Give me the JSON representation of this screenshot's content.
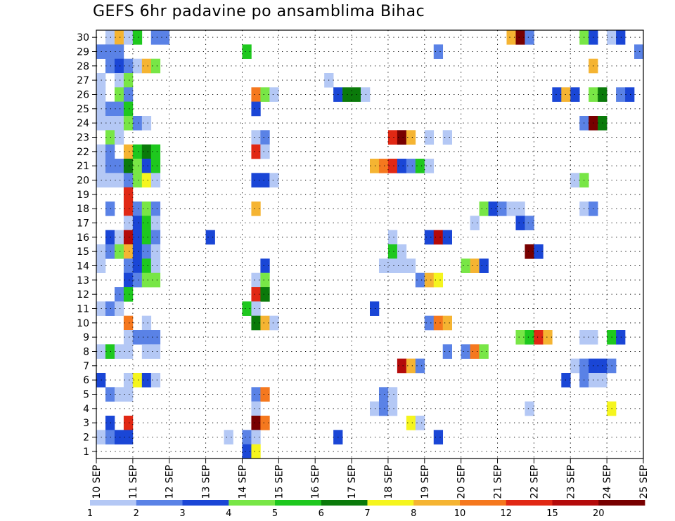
{
  "chart_data": {
    "type": "heatmap",
    "title": "GEFS 6hr padavine po ansamblima Bihac",
    "xlabel": "",
    "ylabel": "",
    "x_ticks": [
      "10 SEP",
      "11 SEP",
      "12 SEP",
      "13 SEP",
      "14 SEP",
      "15 SEP",
      "16 SEP",
      "17 SEP",
      "18 SEP",
      "19 SEP",
      "20 SEP",
      "21 SEP",
      "22 SEP",
      "23 SEP",
      "24 SEP",
      "25 SEP"
    ],
    "x_range_days": [
      10,
      25
    ],
    "y_range": [
      0,
      30
    ],
    "y_ticks": [
      1,
      2,
      3,
      4,
      5,
      6,
      7,
      8,
      9,
      10,
      11,
      12,
      13,
      14,
      15,
      16,
      17,
      18,
      19,
      20,
      21,
      22,
      23,
      24,
      25,
      26,
      27,
      28,
      29,
      30
    ],
    "grid": true,
    "time_step_hours": 6,
    "legend": {
      "placement": "bottom",
      "thresholds": [
        1,
        2,
        3,
        4,
        5,
        6,
        7,
        8,
        10,
        12,
        15,
        20
      ],
      "colors": [
        "#b4c8f5",
        "#5a82e6",
        "#1a46d6",
        "#78e646",
        "#1ec81e",
        "#0a7a0a",
        "#f5f51e",
        "#f5b432",
        "#f5781e",
        "#e12814",
        "#b40a0a",
        "#780000"
      ]
    },
    "cell_colors_by_class": {
      "1": "#b4c8f5",
      "2": "#5a82e6",
      "3": "#1a46d6",
      "4": "#78e646",
      "5": "#1ec81e",
      "6": "#0a7a0a",
      "7": "#f5f51e",
      "8": "#f5b432",
      "9": "#f5781e",
      "10": "#e12814",
      "11": "#b40a0a",
      "12": "#780000"
    },
    "cells": [
      {
        "m": 30,
        "s": 1,
        "c": 1
      },
      {
        "m": 30,
        "s": 2,
        "c": 8
      },
      {
        "m": 30,
        "s": 3,
        "c": 1
      },
      {
        "m": 30,
        "s": 4,
        "c": 5
      },
      {
        "m": 30,
        "s": 6,
        "c": 2
      },
      {
        "m": 30,
        "s": 7,
        "c": 2
      },
      {
        "m": 30,
        "s": 45,
        "c": 8
      },
      {
        "m": 30,
        "s": 46,
        "c": 12
      },
      {
        "m": 30,
        "s": 47,
        "c": 2
      },
      {
        "m": 30,
        "s": 53,
        "c": 4
      },
      {
        "m": 30,
        "s": 54,
        "c": 3
      },
      {
        "m": 30,
        "s": 56,
        "c": 1
      },
      {
        "m": 30,
        "s": 57,
        "c": 3
      },
      {
        "m": 29,
        "s": 0,
        "c": 2
      },
      {
        "m": 29,
        "s": 1,
        "c": 2
      },
      {
        "m": 29,
        "s": 2,
        "c": 2
      },
      {
        "m": 29,
        "s": 16,
        "c": 5
      },
      {
        "m": 29,
        "s": 37,
        "c": 2
      },
      {
        "m": 29,
        "s": 59,
        "c": 2
      },
      {
        "m": 28,
        "s": 1,
        "c": 2
      },
      {
        "m": 28,
        "s": 2,
        "c": 3
      },
      {
        "m": 28,
        "s": 3,
        "c": 2
      },
      {
        "m": 28,
        "s": 4,
        "c": 1
      },
      {
        "m": 28,
        "s": 5,
        "c": 8
      },
      {
        "m": 28,
        "s": 6,
        "c": 4
      },
      {
        "m": 28,
        "s": 54,
        "c": 8
      },
      {
        "m": 27,
        "s": 0,
        "c": 1
      },
      {
        "m": 27,
        "s": 2,
        "c": 1
      },
      {
        "m": 27,
        "s": 3,
        "c": 4
      },
      {
        "m": 27,
        "s": 25,
        "c": 1
      },
      {
        "m": 26,
        "s": 0,
        "c": 1
      },
      {
        "m": 26,
        "s": 2,
        "c": 4
      },
      {
        "m": 26,
        "s": 3,
        "c": 2
      },
      {
        "m": 26,
        "s": 17,
        "c": 9
      },
      {
        "m": 26,
        "s": 18,
        "c": 4
      },
      {
        "m": 26,
        "s": 19,
        "c": 1
      },
      {
        "m": 26,
        "s": 26,
        "c": 3
      },
      {
        "m": 26,
        "s": 27,
        "c": 6
      },
      {
        "m": 26,
        "s": 28,
        "c": 6
      },
      {
        "m": 26,
        "s": 29,
        "c": 1
      },
      {
        "m": 26,
        "s": 50,
        "c": 3
      },
      {
        "m": 26,
        "s": 51,
        "c": 8
      },
      {
        "m": 26,
        "s": 52,
        "c": 3
      },
      {
        "m": 26,
        "s": 54,
        "c": 4
      },
      {
        "m": 26,
        "s": 55,
        "c": 6
      },
      {
        "m": 26,
        "s": 57,
        "c": 2
      },
      {
        "m": 26,
        "s": 58,
        "c": 3
      },
      {
        "m": 25,
        "s": 0,
        "c": 1
      },
      {
        "m": 25,
        "s": 1,
        "c": 2
      },
      {
        "m": 25,
        "s": 2,
        "c": 2
      },
      {
        "m": 25,
        "s": 3,
        "c": 5
      },
      {
        "m": 25,
        "s": 17,
        "c": 3
      },
      {
        "m": 24,
        "s": 0,
        "c": 1
      },
      {
        "m": 24,
        "s": 1,
        "c": 1
      },
      {
        "m": 24,
        "s": 2,
        "c": 1
      },
      {
        "m": 24,
        "s": 3,
        "c": 4
      },
      {
        "m": 24,
        "s": 4,
        "c": 2
      },
      {
        "m": 24,
        "s": 5,
        "c": 1
      },
      {
        "m": 24,
        "s": 53,
        "c": 2
      },
      {
        "m": 24,
        "s": 54,
        "c": 12
      },
      {
        "m": 24,
        "s": 55,
        "c": 6
      },
      {
        "m": 23,
        "s": 1,
        "c": 4
      },
      {
        "m": 23,
        "s": 2,
        "c": 1
      },
      {
        "m": 23,
        "s": 17,
        "c": 1
      },
      {
        "m": 23,
        "s": 18,
        "c": 2
      },
      {
        "m": 23,
        "s": 32,
        "c": 10
      },
      {
        "m": 23,
        "s": 33,
        "c": 12
      },
      {
        "m": 23,
        "s": 34,
        "c": 8
      },
      {
        "m": 23,
        "s": 36,
        "c": 1
      },
      {
        "m": 23,
        "s": 38,
        "c": 1
      },
      {
        "m": 22,
        "s": 0,
        "c": 1
      },
      {
        "m": 22,
        "s": 1,
        "c": 2
      },
      {
        "m": 22,
        "s": 3,
        "c": 8
      },
      {
        "m": 22,
        "s": 4,
        "c": 5
      },
      {
        "m": 22,
        "s": 5,
        "c": 6
      },
      {
        "m": 22,
        "s": 6,
        "c": 5
      },
      {
        "m": 22,
        "s": 17,
        "c": 10
      },
      {
        "m": 22,
        "s": 18,
        "c": 1
      },
      {
        "m": 21,
        "s": 0,
        "c": 1
      },
      {
        "m": 21,
        "s": 1,
        "c": 2
      },
      {
        "m": 21,
        "s": 2,
        "c": 2
      },
      {
        "m": 21,
        "s": 3,
        "c": 6
      },
      {
        "m": 21,
        "s": 4,
        "c": 4
      },
      {
        "m": 21,
        "s": 5,
        "c": 3
      },
      {
        "m": 21,
        "s": 6,
        "c": 5
      },
      {
        "m": 21,
        "s": 30,
        "c": 8
      },
      {
        "m": 21,
        "s": 31,
        "c": 9
      },
      {
        "m": 21,
        "s": 32,
        "c": 10
      },
      {
        "m": 21,
        "s": 33,
        "c": 3
      },
      {
        "m": 21,
        "s": 34,
        "c": 2
      },
      {
        "m": 21,
        "s": 35,
        "c": 5
      },
      {
        "m": 21,
        "s": 36,
        "c": 1
      },
      {
        "m": 20,
        "s": 0,
        "c": 1
      },
      {
        "m": 20,
        "s": 1,
        "c": 1
      },
      {
        "m": 20,
        "s": 2,
        "c": 1
      },
      {
        "m": 20,
        "s": 3,
        "c": 2
      },
      {
        "m": 20,
        "s": 4,
        "c": 4
      },
      {
        "m": 20,
        "s": 5,
        "c": 7
      },
      {
        "m": 20,
        "s": 6,
        "c": 1
      },
      {
        "m": 20,
        "s": 17,
        "c": 3
      },
      {
        "m": 20,
        "s": 18,
        "c": 3
      },
      {
        "m": 20,
        "s": 19,
        "c": 1
      },
      {
        "m": 20,
        "s": 52,
        "c": 1
      },
      {
        "m": 20,
        "s": 53,
        "c": 4
      },
      {
        "m": 19,
        "s": 3,
        "c": 10
      },
      {
        "m": 18,
        "s": 1,
        "c": 2
      },
      {
        "m": 18,
        "s": 3,
        "c": 10
      },
      {
        "m": 18,
        "s": 4,
        "c": 2
      },
      {
        "m": 18,
        "s": 5,
        "c": 4
      },
      {
        "m": 18,
        "s": 6,
        "c": 2
      },
      {
        "m": 18,
        "s": 17,
        "c": 8
      },
      {
        "m": 18,
        "s": 42,
        "c": 4
      },
      {
        "m": 18,
        "s": 43,
        "c": 3
      },
      {
        "m": 18,
        "s": 44,
        "c": 2
      },
      {
        "m": 18,
        "s": 45,
        "c": 1
      },
      {
        "m": 18,
        "s": 46,
        "c": 1
      },
      {
        "m": 18,
        "s": 53,
        "c": 1
      },
      {
        "m": 18,
        "s": 54,
        "c": 2
      },
      {
        "m": 17,
        "s": 3,
        "c": 1
      },
      {
        "m": 17,
        "s": 4,
        "c": 3
      },
      {
        "m": 17,
        "s": 5,
        "c": 5
      },
      {
        "m": 17,
        "s": 6,
        "c": 1
      },
      {
        "m": 17,
        "s": 41,
        "c": 1
      },
      {
        "m": 17,
        "s": 46,
        "c": 3
      },
      {
        "m": 17,
        "s": 47,
        "c": 2
      },
      {
        "m": 16,
        "s": 1,
        "c": 3
      },
      {
        "m": 16,
        "s": 2,
        "c": 1
      },
      {
        "m": 16,
        "s": 3,
        "c": 11
      },
      {
        "m": 16,
        "s": 4,
        "c": 3
      },
      {
        "m": 16,
        "s": 5,
        "c": 5
      },
      {
        "m": 16,
        "s": 6,
        "c": 2
      },
      {
        "m": 16,
        "s": 12,
        "c": 3
      },
      {
        "m": 16,
        "s": 32,
        "c": 1
      },
      {
        "m": 16,
        "s": 36,
        "c": 3
      },
      {
        "m": 16,
        "s": 37,
        "c": 11
      },
      {
        "m": 16,
        "s": 38,
        "c": 3
      },
      {
        "m": 15,
        "s": 0,
        "c": 1
      },
      {
        "m": 15,
        "s": 1,
        "c": 2
      },
      {
        "m": 15,
        "s": 2,
        "c": 4
      },
      {
        "m": 15,
        "s": 3,
        "c": 8
      },
      {
        "m": 15,
        "s": 4,
        "c": 3
      },
      {
        "m": 15,
        "s": 5,
        "c": 2
      },
      {
        "m": 15,
        "s": 6,
        "c": 1
      },
      {
        "m": 15,
        "s": 32,
        "c": 5
      },
      {
        "m": 15,
        "s": 33,
        "c": 1
      },
      {
        "m": 15,
        "s": 47,
        "c": 12
      },
      {
        "m": 15,
        "s": 48,
        "c": 3
      },
      {
        "m": 14,
        "s": 0,
        "c": 1
      },
      {
        "m": 14,
        "s": 3,
        "c": 2
      },
      {
        "m": 14,
        "s": 4,
        "c": 3
      },
      {
        "m": 14,
        "s": 5,
        "c": 5
      },
      {
        "m": 14,
        "s": 6,
        "c": 1
      },
      {
        "m": 14,
        "s": 18,
        "c": 3
      },
      {
        "m": 14,
        "s": 31,
        "c": 1
      },
      {
        "m": 14,
        "s": 32,
        "c": 1
      },
      {
        "m": 14,
        "s": 33,
        "c": 1
      },
      {
        "m": 14,
        "s": 34,
        "c": 1
      },
      {
        "m": 14,
        "s": 40,
        "c": 4
      },
      {
        "m": 14,
        "s": 41,
        "c": 8
      },
      {
        "m": 14,
        "s": 42,
        "c": 3
      },
      {
        "m": 13,
        "s": 3,
        "c": 3
      },
      {
        "m": 13,
        "s": 4,
        "c": 2
      },
      {
        "m": 13,
        "s": 5,
        "c": 4
      },
      {
        "m": 13,
        "s": 6,
        "c": 4
      },
      {
        "m": 13,
        "s": 17,
        "c": 1
      },
      {
        "m": 13,
        "s": 18,
        "c": 4
      },
      {
        "m": 13,
        "s": 35,
        "c": 2
      },
      {
        "m": 13,
        "s": 36,
        "c": 8
      },
      {
        "m": 13,
        "s": 37,
        "c": 7
      },
      {
        "m": 12,
        "s": 2,
        "c": 2
      },
      {
        "m": 12,
        "s": 3,
        "c": 5
      },
      {
        "m": 12,
        "s": 17,
        "c": 10
      },
      {
        "m": 12,
        "s": 18,
        "c": 6
      },
      {
        "m": 11,
        "s": 0,
        "c": 1
      },
      {
        "m": 11,
        "s": 1,
        "c": 2
      },
      {
        "m": 11,
        "s": 2,
        "c": 1
      },
      {
        "m": 11,
        "s": 16,
        "c": 5
      },
      {
        "m": 11,
        "s": 17,
        "c": 1
      },
      {
        "m": 11,
        "s": 30,
        "c": 3
      },
      {
        "m": 10,
        "s": 3,
        "c": 9
      },
      {
        "m": 10,
        "s": 5,
        "c": 1
      },
      {
        "m": 10,
        "s": 17,
        "c": 6
      },
      {
        "m": 10,
        "s": 18,
        "c": 8
      },
      {
        "m": 10,
        "s": 19,
        "c": 1
      },
      {
        "m": 10,
        "s": 36,
        "c": 2
      },
      {
        "m": 10,
        "s": 37,
        "c": 9
      },
      {
        "m": 10,
        "s": 38,
        "c": 8
      },
      {
        "m": 9,
        "s": 3,
        "c": 1
      },
      {
        "m": 9,
        "s": 4,
        "c": 2
      },
      {
        "m": 9,
        "s": 5,
        "c": 2
      },
      {
        "m": 9,
        "s": 6,
        "c": 2
      },
      {
        "m": 9,
        "s": 46,
        "c": 4
      },
      {
        "m": 9,
        "s": 47,
        "c": 5
      },
      {
        "m": 9,
        "s": 48,
        "c": 10
      },
      {
        "m": 9,
        "s": 49,
        "c": 8
      },
      {
        "m": 9,
        "s": 53,
        "c": 1
      },
      {
        "m": 9,
        "s": 54,
        "c": 1
      },
      {
        "m": 9,
        "s": 56,
        "c": 5
      },
      {
        "m": 9,
        "s": 57,
        "c": 3
      },
      {
        "m": 8,
        "s": 0,
        "c": 1
      },
      {
        "m": 8,
        "s": 1,
        "c": 5
      },
      {
        "m": 8,
        "s": 2,
        "c": 1
      },
      {
        "m": 8,
        "s": 3,
        "c": 1
      },
      {
        "m": 8,
        "s": 5,
        "c": 1
      },
      {
        "m": 8,
        "s": 6,
        "c": 1
      },
      {
        "m": 8,
        "s": 38,
        "c": 2
      },
      {
        "m": 8,
        "s": 40,
        "c": 2
      },
      {
        "m": 8,
        "s": 41,
        "c": 9
      },
      {
        "m": 8,
        "s": 42,
        "c": 4
      },
      {
        "m": 7,
        "s": 33,
        "c": 11
      },
      {
        "m": 7,
        "s": 34,
        "c": 8
      },
      {
        "m": 7,
        "s": 35,
        "c": 2
      },
      {
        "m": 7,
        "s": 52,
        "c": 1
      },
      {
        "m": 7,
        "s": 53,
        "c": 2
      },
      {
        "m": 7,
        "s": 54,
        "c": 3
      },
      {
        "m": 7,
        "s": 55,
        "c": 3
      },
      {
        "m": 7,
        "s": 56,
        "c": 2
      },
      {
        "m": 6,
        "s": 0,
        "c": 3
      },
      {
        "m": 6,
        "s": 3,
        "c": 1
      },
      {
        "m": 6,
        "s": 4,
        "c": 7
      },
      {
        "m": 6,
        "s": 5,
        "c": 3
      },
      {
        "m": 6,
        "s": 6,
        "c": 1
      },
      {
        "m": 6,
        "s": 51,
        "c": 3
      },
      {
        "m": 6,
        "s": 53,
        "c": 2
      },
      {
        "m": 6,
        "s": 54,
        "c": 1
      },
      {
        "m": 6,
        "s": 55,
        "c": 1
      },
      {
        "m": 5,
        "s": 1,
        "c": 2
      },
      {
        "m": 5,
        "s": 2,
        "c": 1
      },
      {
        "m": 5,
        "s": 3,
        "c": 1
      },
      {
        "m": 5,
        "s": 17,
        "c": 2
      },
      {
        "m": 5,
        "s": 18,
        "c": 9
      },
      {
        "m": 5,
        "s": 31,
        "c": 2
      },
      {
        "m": 5,
        "s": 32,
        "c": 1
      },
      {
        "m": 4,
        "s": 17,
        "c": 1
      },
      {
        "m": 4,
        "s": 30,
        "c": 1
      },
      {
        "m": 4,
        "s": 31,
        "c": 2
      },
      {
        "m": 4,
        "s": 32,
        "c": 1
      },
      {
        "m": 4,
        "s": 47,
        "c": 1
      },
      {
        "m": 4,
        "s": 56,
        "c": 7
      },
      {
        "m": 3,
        "s": 1,
        "c": 3
      },
      {
        "m": 3,
        "s": 3,
        "c": 10
      },
      {
        "m": 3,
        "s": 17,
        "c": 12
      },
      {
        "m": 3,
        "s": 18,
        "c": 9
      },
      {
        "m": 3,
        "s": 34,
        "c": 7
      },
      {
        "m": 3,
        "s": 35,
        "c": 1
      },
      {
        "m": 2,
        "s": 0,
        "c": 1
      },
      {
        "m": 2,
        "s": 1,
        "c": 2
      },
      {
        "m": 2,
        "s": 2,
        "c": 3
      },
      {
        "m": 2,
        "s": 3,
        "c": 3
      },
      {
        "m": 2,
        "s": 14,
        "c": 1
      },
      {
        "m": 2,
        "s": 16,
        "c": 2
      },
      {
        "m": 2,
        "s": 17,
        "c": 1
      },
      {
        "m": 2,
        "s": 26,
        "c": 3
      },
      {
        "m": 2,
        "s": 37,
        "c": 3
      },
      {
        "m": 1,
        "s": 16,
        "c": 3
      },
      {
        "m": 1,
        "s": 17,
        "c": 7
      }
    ]
  }
}
